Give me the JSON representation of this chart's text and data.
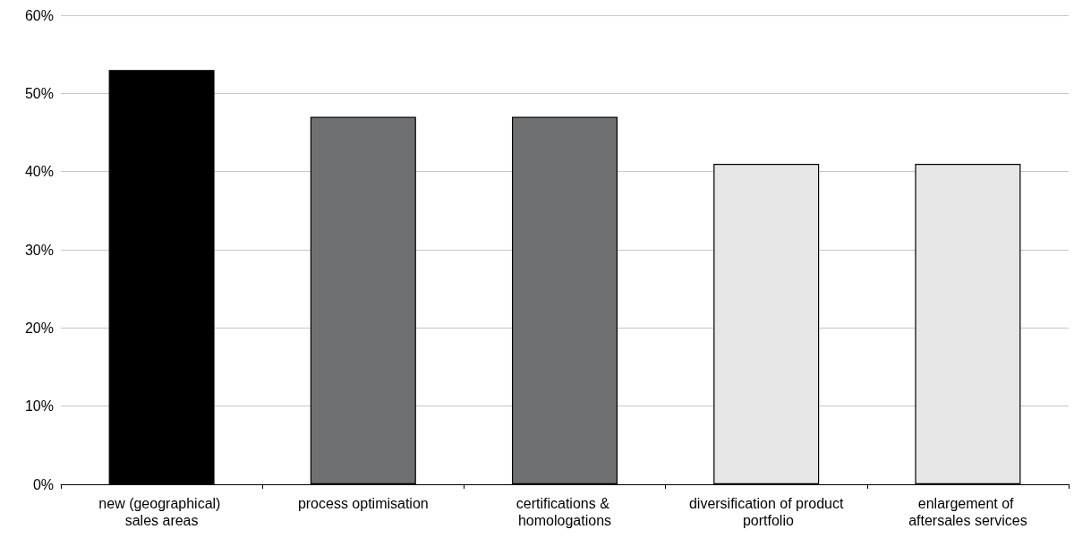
{
  "chart_data": {
    "type": "bar",
    "categories": [
      "new (geographical) sales areas",
      "process optimisation",
      "certifications & homologations",
      "diversification of product portfolio",
      "enlargement of aftersales services"
    ],
    "values": [
      53,
      47,
      47,
      41,
      41
    ],
    "colors": [
      "#000000",
      "#6f7072",
      "#6f7072",
      "#e6e6e6",
      "#e6e6e6"
    ],
    "ylim": [
      0,
      60
    ],
    "yticks": [
      {
        "value": 0,
        "label": "0%"
      },
      {
        "value": 10,
        "label": "10%"
      },
      {
        "value": 20,
        "label": "20%"
      },
      {
        "value": 30,
        "label": "30%"
      },
      {
        "value": 40,
        "label": "40%"
      },
      {
        "value": 50,
        "label": "50%"
      },
      {
        "value": 60,
        "label": "60%"
      }
    ],
    "grid": "y"
  }
}
